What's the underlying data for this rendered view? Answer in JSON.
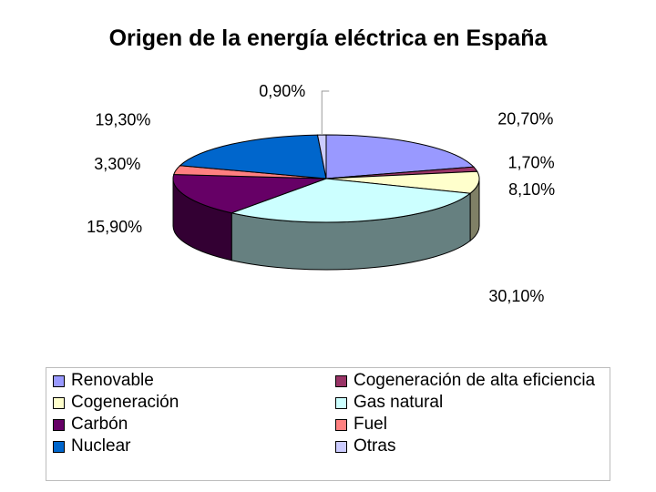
{
  "chart_data": {
    "type": "pie",
    "title": "Origen de la energía eléctrica en España",
    "categories": [
      "Renovable",
      "Cogeneración de alta eficiencia",
      "Cogeneración",
      "Gas natural",
      "Carbón",
      "Fuel",
      "Nuclear",
      "Otras"
    ],
    "values": [
      20.7,
      1.7,
      8.1,
      30.1,
      15.9,
      3.3,
      19.3,
      0.9
    ],
    "data_labels": [
      "20,70%",
      "1,70%",
      "8,10%",
      "30,10%",
      "15,90%",
      "3,30%",
      "19,30%",
      "0,90%"
    ],
    "colors": [
      "#9999FF",
      "#993366",
      "#FFFFCC",
      "#CCFFFF",
      "#660066",
      "#FF8080",
      "#0066CC",
      "#CCCCFF"
    ],
    "style": "3d-pie",
    "legend_position": "bottom"
  }
}
